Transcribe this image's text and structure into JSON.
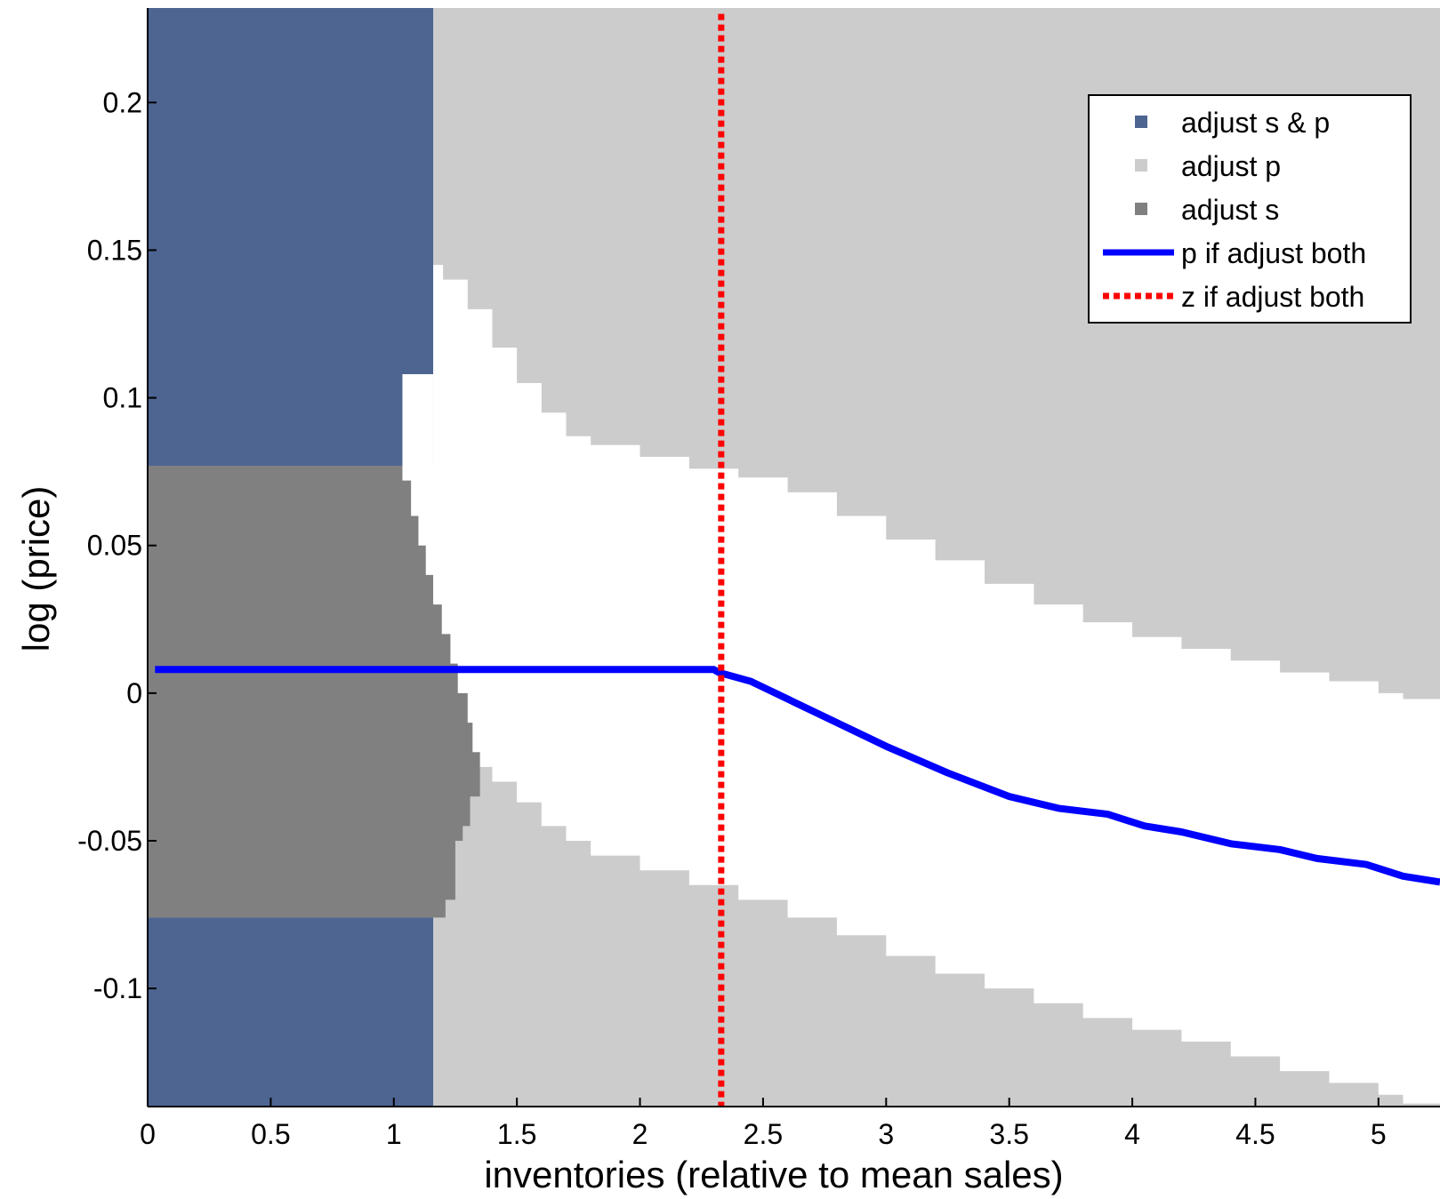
{
  "chart_data": {
    "type": "heatmap",
    "xlabel": "inventories (relative to mean sales)",
    "ylabel": "log (price)",
    "xlim": [
      0,
      5.25
    ],
    "ylim": [
      -0.14,
      0.232
    ],
    "x_ticks": [
      "0",
      "0.5",
      "1",
      "1.5",
      "2",
      "2.5",
      "3",
      "3.5",
      "4",
      "4.5",
      "5"
    ],
    "y_ticks": [
      "-0.1",
      "-0.05",
      "0",
      "0.05",
      "0.1",
      "0.15",
      "0.2"
    ],
    "legend_position": "top-right",
    "colors": {
      "adjust_s_and_p": "#4e6592",
      "adjust_p": "#cccccc",
      "adjust_s": "#808080",
      "p_line": "#0000ff",
      "z_line": "#ff0000"
    },
    "legend": [
      {
        "label": "adjust s & p",
        "kind": "square",
        "color": "#4e6592"
      },
      {
        "label": "adjust p",
        "kind": "square",
        "color": "#cccccc"
      },
      {
        "label": "adjust s",
        "kind": "square",
        "color": "#808080"
      },
      {
        "label": "p if adjust both",
        "kind": "solid-line",
        "color": "#0000ff"
      },
      {
        "label": "z if adjust both",
        "kind": "dotted-line",
        "color": "#ff0000"
      }
    ],
    "regions": {
      "adjust_s_and_p_boundary_x": 1.16,
      "adjust_s_band": [
        -0.076,
        0.077
      ],
      "adjust_s_upper_edge": [
        {
          "y": 0.077,
          "x": 1.035
        },
        {
          "y": 0.072,
          "x": 1.07
        },
        {
          "y": 0.06,
          "x": 1.1
        },
        {
          "y": 0.05,
          "x": 1.13
        },
        {
          "y": 0.04,
          "x": 1.16
        },
        {
          "y": 0.03,
          "x": 1.195
        },
        {
          "y": 0.02,
          "x": 1.23
        },
        {
          "y": 0.01,
          "x": 1.26
        },
        {
          "y": 0.0,
          "x": 1.3
        },
        {
          "y": -0.01,
          "x": 1.32
        },
        {
          "y": -0.02,
          "x": 1.35
        },
        {
          "y": -0.025,
          "x": 1.35
        },
        {
          "y": -0.035,
          "x": 1.31
        },
        {
          "y": -0.045,
          "x": 1.28
        },
        {
          "y": -0.05,
          "x": 1.25
        },
        {
          "y": -0.06,
          "x": 1.25
        },
        {
          "y": -0.07,
          "x": 1.21
        },
        {
          "y": -0.076,
          "x": 1.17
        }
      ],
      "adjust_p_upper_edge": [
        {
          "x": 1.04,
          "y": 0.108
        },
        {
          "x": 1.07,
          "y": 0.132
        },
        {
          "x": 1.1,
          "y": 0.138
        },
        {
          "x": 1.15,
          "y": 0.145
        },
        {
          "x": 1.2,
          "y": 0.14
        },
        {
          "x": 1.3,
          "y": 0.13
        },
        {
          "x": 1.4,
          "y": 0.117
        },
        {
          "x": 1.5,
          "y": 0.105
        },
        {
          "x": 1.6,
          "y": 0.095
        },
        {
          "x": 1.7,
          "y": 0.087
        },
        {
          "x": 1.8,
          "y": 0.084
        },
        {
          "x": 2.0,
          "y": 0.08
        },
        {
          "x": 2.2,
          "y": 0.076
        },
        {
          "x": 2.4,
          "y": 0.073
        },
        {
          "x": 2.6,
          "y": 0.068
        },
        {
          "x": 2.8,
          "y": 0.06
        },
        {
          "x": 3.0,
          "y": 0.052
        },
        {
          "x": 3.2,
          "y": 0.045
        },
        {
          "x": 3.4,
          "y": 0.037
        },
        {
          "x": 3.6,
          "y": 0.03
        },
        {
          "x": 3.8,
          "y": 0.024
        },
        {
          "x": 4.0,
          "y": 0.019
        },
        {
          "x": 4.2,
          "y": 0.015
        },
        {
          "x": 4.4,
          "y": 0.011
        },
        {
          "x": 4.6,
          "y": 0.007
        },
        {
          "x": 4.8,
          "y": 0.004
        },
        {
          "x": 5.0,
          "y": 0.0
        },
        {
          "x": 5.1,
          "y": -0.002
        },
        {
          "x": 5.25,
          "y": -0.003
        }
      ],
      "adjust_p_lower_edge": [
        {
          "x": 1.35,
          "y": -0.025
        },
        {
          "x": 1.4,
          "y": -0.03
        },
        {
          "x": 1.5,
          "y": -0.037
        },
        {
          "x": 1.6,
          "y": -0.045
        },
        {
          "x": 1.7,
          "y": -0.05
        },
        {
          "x": 1.8,
          "y": -0.055
        },
        {
          "x": 2.0,
          "y": -0.06
        },
        {
          "x": 2.2,
          "y": -0.065
        },
        {
          "x": 2.4,
          "y": -0.07
        },
        {
          "x": 2.6,
          "y": -0.076
        },
        {
          "x": 2.8,
          "y": -0.082
        },
        {
          "x": 3.0,
          "y": -0.089
        },
        {
          "x": 3.2,
          "y": -0.095
        },
        {
          "x": 3.4,
          "y": -0.1
        },
        {
          "x": 3.6,
          "y": -0.105
        },
        {
          "x": 3.8,
          "y": -0.11
        },
        {
          "x": 4.0,
          "y": -0.114
        },
        {
          "x": 4.2,
          "y": -0.118
        },
        {
          "x": 4.4,
          "y": -0.123
        },
        {
          "x": 4.6,
          "y": -0.128
        },
        {
          "x": 4.8,
          "y": -0.132
        },
        {
          "x": 5.0,
          "y": -0.136
        },
        {
          "x": 5.1,
          "y": -0.139
        },
        {
          "x": 5.25,
          "y": -0.14
        }
      ]
    },
    "series": [
      {
        "name": "p if adjust both",
        "x": [
          0.03,
          2.3,
          2.32,
          2.45,
          2.5,
          2.75,
          3.0,
          3.25,
          3.5,
          3.7,
          3.9,
          4.05,
          4.2,
          4.4,
          4.6,
          4.75,
          4.95,
          5.1,
          5.25
        ],
        "y": [
          0.008,
          0.008,
          0.007,
          0.004,
          0.002,
          -0.008,
          -0.018,
          -0.027,
          -0.035,
          -0.039,
          -0.041,
          -0.045,
          -0.047,
          -0.051,
          -0.053,
          -0.056,
          -0.058,
          -0.062,
          -0.064
        ]
      },
      {
        "name": "z if adjust both",
        "x": [
          2.33,
          2.33
        ],
        "y": [
          -0.14,
          0.23
        ]
      }
    ]
  }
}
